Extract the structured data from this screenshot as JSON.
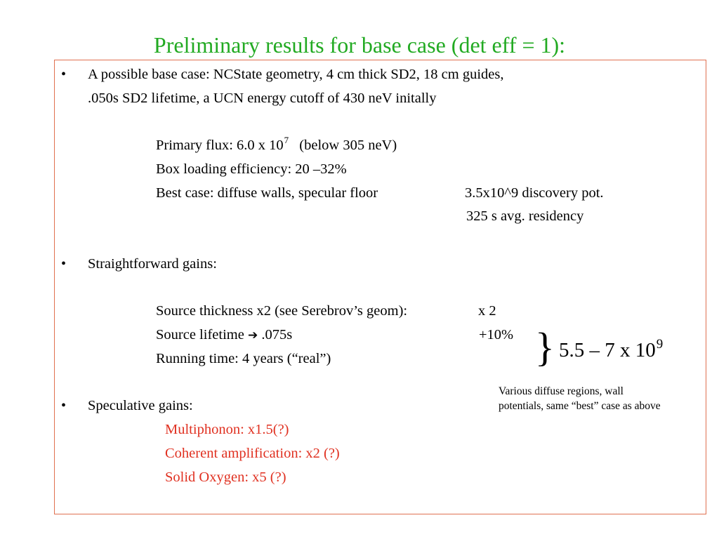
{
  "colors": {
    "title": "#22aa22",
    "speculative": "#e03020",
    "frame": "#e07050"
  },
  "title": "Preliminary results for base case (det eff = 1):",
  "bullet_char": "•",
  "base_case": {
    "line1": "A possible base case: NCState geometry, 4 cm thick SD2, 18 cm guides,",
    "line2": ".050s SD2 lifetime, a UCN energy cutoff of 430 neV initally",
    "primary_flux_pre": "Primary flux: 6.0 x 10",
    "primary_flux_exp": "7",
    "primary_flux_post": "(below 305 neV)",
    "box_loading": "Box loading efficiency: 20 –32%",
    "best_case": "Best case: diffuse walls, specular floor",
    "discovery": "3.5x10^9 discovery pot.",
    "residency": "325 s avg. residency"
  },
  "straightforward": {
    "heading": "Straightforward gains:",
    "source_thickness": "Source thickness x2 (see Serebrov’s geom):",
    "source_thickness_gain": "x 2",
    "source_lifetime_pre": "Source lifetime",
    "arrow": "➔",
    "source_lifetime_post": ".075s",
    "source_lifetime_gain": "+10%",
    "running_time": "Running time: 4 years (“real”)",
    "brace": "}",
    "result_pre": "5.5 – 7 x 10",
    "result_exp": "9"
  },
  "note": {
    "line1": "Various diffuse regions, wall",
    "line2": "potentials, same “best” case as above"
  },
  "speculative": {
    "heading": "Speculative gains:",
    "items": [
      "Multiphonon: x1.5(?)",
      "Coherent amplification:  x2 (?)",
      "Solid Oxygen: x5 (?)"
    ]
  }
}
